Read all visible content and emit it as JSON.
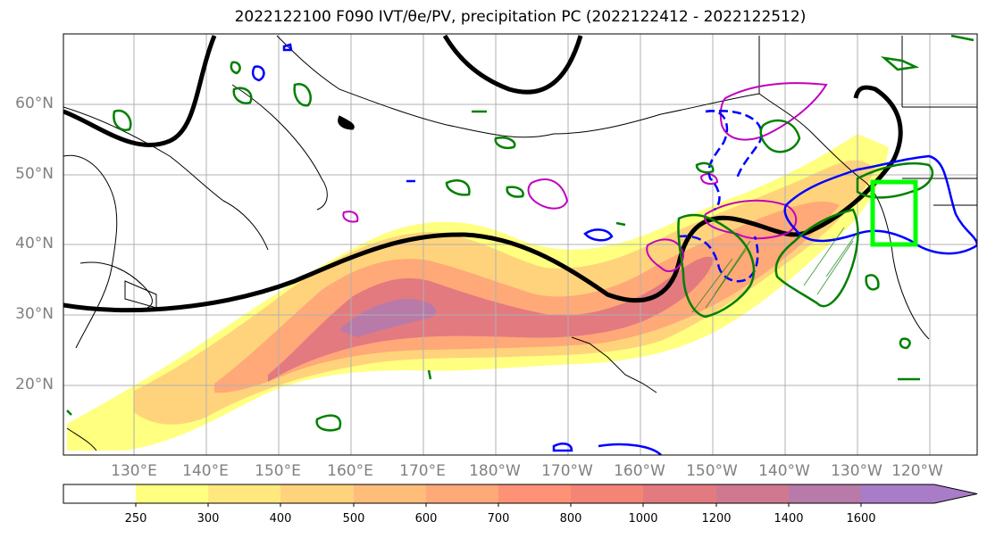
{
  "title": "2022122100 F090 IVT/θe/PV, precipitation PC (2022122412 - 2022122512)",
  "lat_labels": [
    "60°N",
    "50°N",
    "40°N",
    "30°N",
    "20°N"
  ],
  "lon_labels": [
    "130°E",
    "140°E",
    "150°E",
    "160°E",
    "170°E",
    "180°W",
    "170°W",
    "160°W",
    "150°W",
    "140°W",
    "130°W",
    "120°W"
  ],
  "colorbar": {
    "ticks": [
      "250",
      "300",
      "400",
      "500",
      "600",
      "700",
      "800",
      "1000",
      "1200",
      "1400",
      "1600"
    ],
    "colors": [
      "#ffff80",
      "#ffe97e",
      "#ffd37c",
      "#ffbd7a",
      "#ffa878",
      "#ff9276",
      "#f48476",
      "#e27a80",
      "#cf7890",
      "#b87aa8",
      "#a97cc8"
    ]
  },
  "highlight_box_color": "#00ff00",
  "map_colors": {
    "contour_black": "#000000",
    "contour_blue": "#0000ff",
    "contour_green": "#008000",
    "contour_magenta": "#c000c0"
  }
}
